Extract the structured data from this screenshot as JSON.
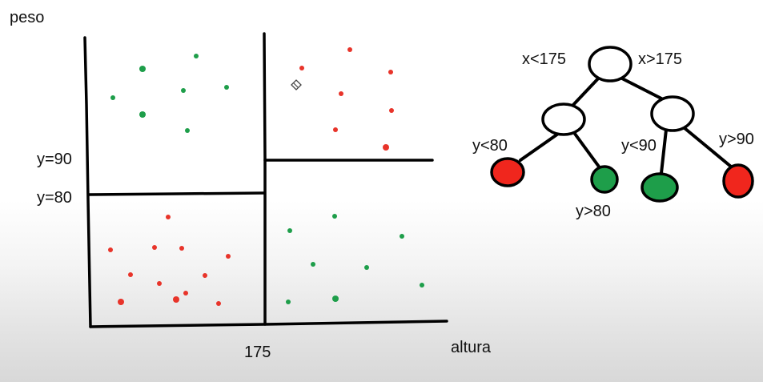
{
  "scatter": {
    "y_axis_label": "peso",
    "x_axis_label": "altura",
    "x_split_tick": "175",
    "y_split_labels": [
      "y=90",
      "y=80"
    ],
    "colors": {
      "green": "#1e9e4a",
      "red": "#e8342a"
    }
  },
  "tree": {
    "root_left_edge": "x<175",
    "root_right_edge": "x>175",
    "left_child_left_edge": "y<80",
    "left_child_right_edge": "y>80",
    "right_child_left_edge": "y<90",
    "right_child_right_edge": "y>90",
    "leaf_colors": [
      "red",
      "green",
      "green",
      "red"
    ]
  }
}
